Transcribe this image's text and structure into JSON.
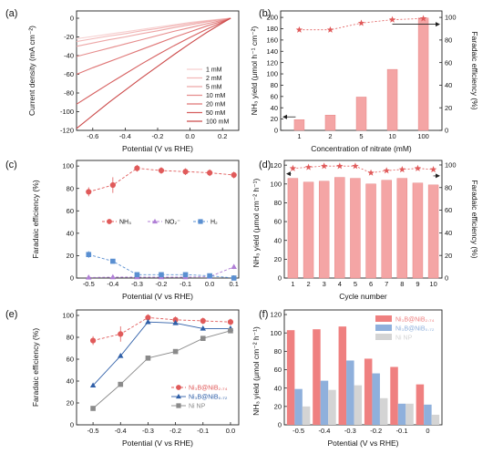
{
  "chart_data": [
    {
      "panel": "(a)",
      "type": "line",
      "xlabel": "Potential (V vs RHE)",
      "ylabel": "Current density (mA cm⁻²)",
      "xlim": [
        -0.7,
        0.3
      ],
      "ylim": [
        -120,
        0
      ],
      "xticks": [
        "-0.6",
        "-0.4",
        "-0.2",
        "0.0",
        "0.2"
      ],
      "yticks": [
        "0",
        "-20",
        "-40",
        "-60",
        "-80",
        "-100",
        "-120"
      ],
      "legend_position": "bottom-right",
      "colors": [
        "#f6cfcf",
        "#f2b8b8",
        "#eda6a6",
        "#e68c8c",
        "#df7575",
        "#d65f5f",
        "#cc4a4a"
      ],
      "series": [
        {
          "name": "1 mM",
          "x": [
            -0.7,
            -0.6,
            -0.5,
            -0.4,
            -0.3,
            -0.2,
            -0.1,
            0.0,
            0.1,
            0.2,
            0.25
          ],
          "y": [
            -22,
            -19.5,
            -17,
            -14.5,
            -12,
            -9.5,
            -7,
            -4.5,
            -2.5,
            -0.8,
            0
          ]
        },
        {
          "name": "2 mM",
          "x": [
            -0.7,
            -0.6,
            -0.5,
            -0.4,
            -0.3,
            -0.2,
            -0.1,
            0.0,
            0.1,
            0.2,
            0.25
          ],
          "y": [
            -25,
            -22,
            -19,
            -16.5,
            -13.5,
            -11,
            -8,
            -5.5,
            -3,
            -1,
            0
          ]
        },
        {
          "name": "5 mM",
          "x": [
            -0.7,
            -0.6,
            -0.5,
            -0.4,
            -0.3,
            -0.2,
            -0.1,
            0.0,
            0.1,
            0.2,
            0.25
          ],
          "y": [
            -30,
            -26.5,
            -23,
            -20,
            -16.5,
            -13.5,
            -10,
            -7,
            -4,
            -1.2,
            0
          ]
        },
        {
          "name": "10 mM",
          "x": [
            -0.7,
            -0.6,
            -0.5,
            -0.4,
            -0.3,
            -0.2,
            -0.1,
            0.0,
            0.1,
            0.2,
            0.25
          ],
          "y": [
            -41,
            -36.5,
            -32,
            -27.5,
            -23,
            -18.5,
            -14,
            -10,
            -6,
            -2,
            0
          ]
        },
        {
          "name": "20 mM",
          "x": [
            -0.7,
            -0.6,
            -0.5,
            -0.4,
            -0.3,
            -0.2,
            -0.1,
            0.0,
            0.1,
            0.2,
            0.25
          ],
          "y": [
            -60,
            -53,
            -46.5,
            -40,
            -33.5,
            -27,
            -20.5,
            -14.5,
            -8.5,
            -3,
            0
          ]
        },
        {
          "name": "50 mM",
          "x": [
            -0.7,
            -0.6,
            -0.5,
            -0.4,
            -0.3,
            -0.2,
            -0.1,
            0.0,
            0.1,
            0.2,
            0.25
          ],
          "y": [
            -92,
            -81,
            -70,
            -59.5,
            -49,
            -39,
            -29.5,
            -20.5,
            -12,
            -4,
            0
          ]
        },
        {
          "name": "100 mM",
          "x": [
            -0.7,
            -0.6,
            -0.5,
            -0.4,
            -0.3,
            -0.2,
            -0.1,
            0.0,
            0.1,
            0.2,
            0.25
          ],
          "y": [
            -118,
            -104,
            -90,
            -77,
            -64,
            -51.5,
            -39,
            -27,
            -15.5,
            -5,
            0
          ]
        }
      ]
    },
    {
      "panel": "(b)",
      "type": "bar",
      "xlabel": "Concentration of nitrate (mM)",
      "ylabel": "NH₃ yield (μmol h⁻¹ cm⁻²)",
      "y2label": "Faradaic efficiency (%)",
      "categories": [
        "1",
        "2",
        "5",
        "10",
        "100"
      ],
      "ylim": [
        0,
        200
      ],
      "yticks": [
        "0",
        "20",
        "40",
        "60",
        "80",
        "100",
        "120",
        "140",
        "160",
        "180",
        "200"
      ],
      "y2lim": [
        0,
        100
      ],
      "y2ticks": [
        "0",
        "20",
        "40",
        "60",
        "80",
        "100"
      ],
      "bar_color": "#f4a5a5",
      "line_color": "#e05a5a",
      "series": [
        {
          "axis": "left",
          "kind": "bar",
          "values": [
            19,
            27,
            59,
            108,
            199
          ]
        },
        {
          "axis": "right",
          "kind": "line-star",
          "values": [
            89,
            89,
            95,
            98,
            99
          ]
        }
      ]
    },
    {
      "panel": "(c)",
      "type": "line",
      "xlabel": "Potential (V vs RHE)",
      "ylabel": "Faradaic efficiency (%)",
      "x": [
        -0.5,
        -0.4,
        -0.3,
        -0.2,
        -0.1,
        0.0,
        0.1
      ],
      "xticks": [
        "-0.5",
        "-0.4",
        "-0.3",
        "-0.2",
        "-0.1",
        "0.0",
        "0.1"
      ],
      "ylim": [
        0,
        100
      ],
      "yticks": [
        "0",
        "20",
        "40",
        "60",
        "80",
        "100"
      ],
      "legend_position": "center",
      "series": [
        {
          "name": "NH₃",
          "marker": "circle",
          "color": "#e05a5a",
          "values": [
            77,
            83,
            98,
            96,
            95,
            94,
            92
          ],
          "err": [
            4,
            7,
            3,
            3,
            3,
            3,
            3
          ]
        },
        {
          "name": "NO₂⁻",
          "marker": "triangle",
          "color": "#b07fd6",
          "values": [
            0.5,
            0.8,
            0.8,
            0.8,
            0.8,
            1.2,
            10
          ],
          "err": [
            0,
            0,
            0,
            0,
            0,
            0,
            2
          ]
        },
        {
          "name": "H₂",
          "marker": "square",
          "color": "#5a8fd1",
          "values": [
            21,
            15,
            3,
            3,
            3,
            2,
            0
          ],
          "err": [
            3,
            2,
            1,
            1,
            1,
            1,
            0
          ]
        }
      ]
    },
    {
      "panel": "(d)",
      "type": "bar",
      "xlabel": "Cycle number",
      "ylabel": "NH₃ yield (μmol cm⁻² h⁻¹)",
      "y2label": "Faradaic efficiency (%)",
      "categories": [
        "1",
        "2",
        "3",
        "4",
        "5",
        "6",
        "7",
        "8",
        "9",
        "10"
      ],
      "ylim": [
        0,
        120
      ],
      "yticks": [
        "0",
        "20",
        "40",
        "60",
        "80",
        "100",
        "120"
      ],
      "y2lim": [
        0,
        100
      ],
      "y2ticks": [
        "0",
        "20",
        "40",
        "60",
        "80",
        "100"
      ],
      "bar_color": "#f4a5a5",
      "line_color": "#e05a5a",
      "series": [
        {
          "axis": "left",
          "kind": "bar",
          "values": [
            106,
            102,
            103,
            107,
            106,
            100,
            104,
            106,
            101,
            99
          ]
        },
        {
          "axis": "right",
          "kind": "line-star",
          "values": [
            97,
            98,
            99,
            99,
            99,
            93,
            95,
            96,
            97,
            96
          ]
        }
      ]
    },
    {
      "panel": "(e)",
      "type": "line",
      "xlabel": "Potential (V vs RHE)",
      "ylabel": "Faradaic efficiency (%)",
      "x": [
        -0.5,
        -0.4,
        -0.3,
        -0.2,
        -0.1,
        0.0
      ],
      "xticks": [
        "-0.5",
        "-0.4",
        "-0.3",
        "-0.2",
        "-0.1",
        "0.0"
      ],
      "ylim": [
        0,
        100
      ],
      "yticks": [
        "0",
        "20",
        "40",
        "60",
        "80",
        "100"
      ],
      "legend_position": "bottom-right",
      "series": [
        {
          "name": "Ni₃B@NiB₂.₇₄",
          "marker": "circle",
          "color": "#e05a5a",
          "values": [
            77,
            83,
            98,
            96,
            95,
            94
          ],
          "err": [
            4,
            7,
            3,
            3,
            3,
            3
          ]
        },
        {
          "name": "Ni₃B@NiB₀.₇₂",
          "marker": "triangle",
          "color": "#2f5fa8",
          "values": [
            36,
            63,
            94,
            93,
            88,
            88
          ],
          "err": [
            0,
            0,
            0,
            0,
            0,
            0
          ]
        },
        {
          "name": "Ni NP",
          "marker": "square",
          "color": "#8a8a8a",
          "values": [
            15,
            37,
            61,
            67,
            79,
            86
          ],
          "err": [
            0,
            0,
            0,
            0,
            0,
            0
          ]
        }
      ]
    },
    {
      "panel": "(f)",
      "type": "bar",
      "xlabel": "Potential (V vs RHE)",
      "ylabel": "NH₃ yield (μmol cm⁻² h⁻¹)",
      "categories": [
        "-0.5",
        "-0.4",
        "-0.3",
        "-0.2",
        "-0.1",
        "0"
      ],
      "ylim": [
        0,
        120
      ],
      "yticks": [
        "0",
        "20",
        "40",
        "60",
        "80",
        "100",
        "120"
      ],
      "legend_position": "top-right",
      "series": [
        {
          "name": "Ni₃B@NiB₂.₇₄",
          "color": "#ef8080",
          "values": [
            103,
            104,
            107,
            72,
            63,
            44
          ]
        },
        {
          "name": "Ni₃B@NiB₀.₇₂",
          "color": "#8fb0dc",
          "values": [
            39,
            48,
            70,
            56,
            23,
            22
          ]
        },
        {
          "name": "Ni NP",
          "color": "#d4d4d4",
          "values": [
            20,
            38,
            43,
            29,
            23,
            11
          ]
        }
      ]
    }
  ]
}
